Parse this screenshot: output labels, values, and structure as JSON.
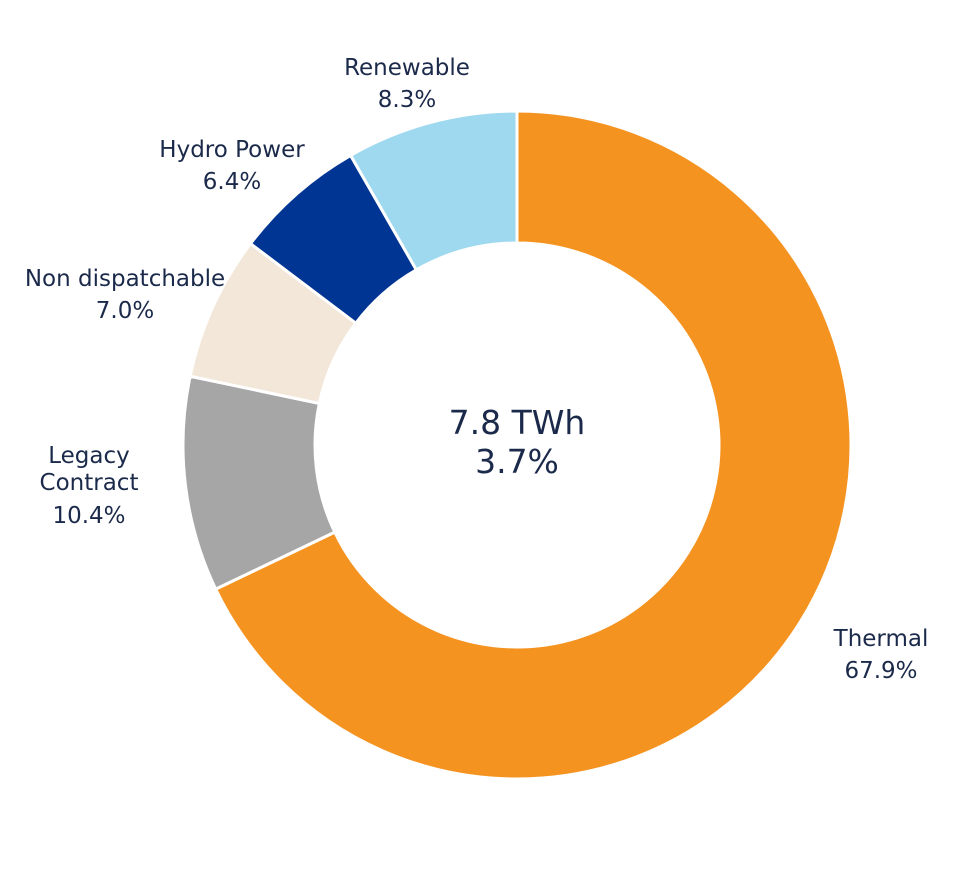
{
  "chart_data": {
    "type": "pie",
    "style": "donut",
    "center_text": [
      "7.8 TWh",
      "3.7%"
    ],
    "slices": [
      {
        "label": "Thermal",
        "label_lines": [
          "Thermal"
        ],
        "value": 67.9,
        "display": "67.9%",
        "color": "#F59320"
      },
      {
        "label": "Legacy Contract",
        "label_lines": [
          "Legacy",
          "Contract"
        ],
        "value": 10.4,
        "display": "10.4%",
        "color": "#A6A6A6"
      },
      {
        "label": "Non dispatchable",
        "label_lines": [
          "Non dispatchable"
        ],
        "value": 7.0,
        "display": "7.0%",
        "color": "#F2E7D8"
      },
      {
        "label": "Hydro Power",
        "label_lines": [
          "Hydro Power"
        ],
        "value": 6.4,
        "display": "6.4%",
        "color": "#003594"
      },
      {
        "label": "Renewable",
        "label_lines": [
          "Renewable"
        ],
        "value": 8.3,
        "display": "8.3%",
        "color": "#9ED9F0"
      }
    ],
    "legend": "none"
  }
}
